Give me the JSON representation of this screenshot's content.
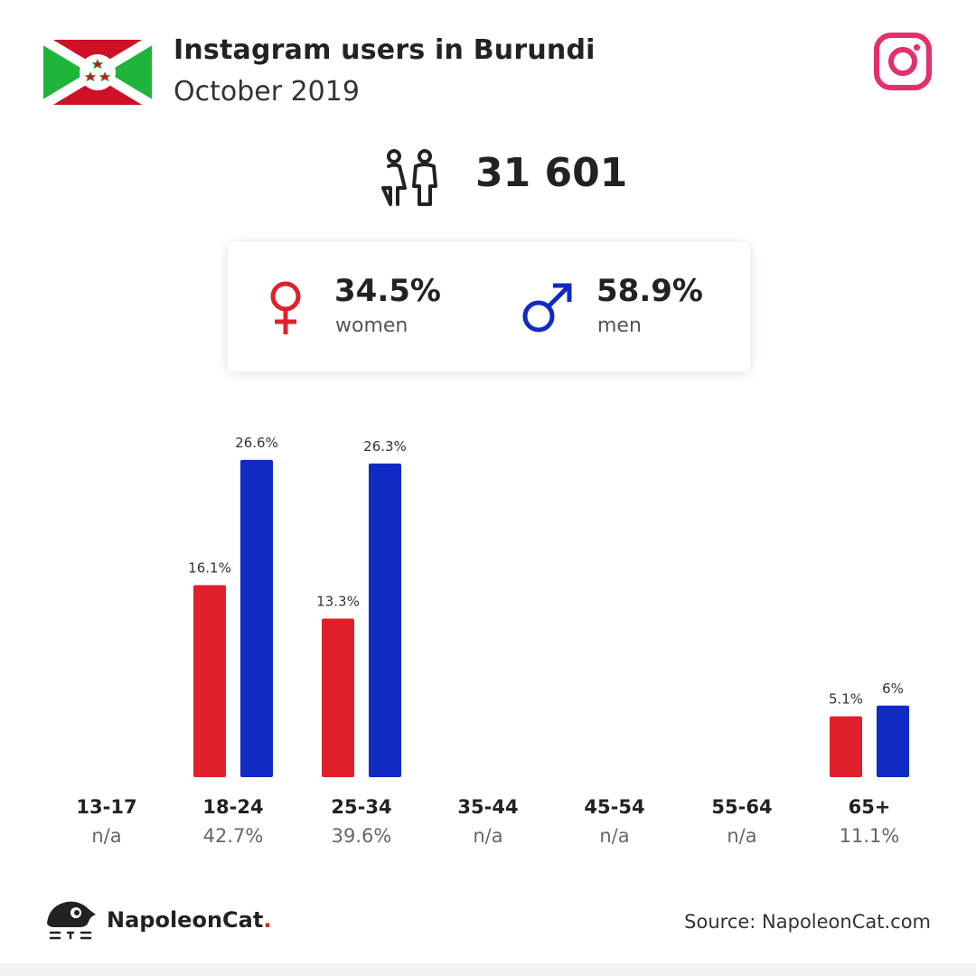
{
  "header": {
    "title": "Instagram users in Burundi",
    "subtitle": "October 2019"
  },
  "total": {
    "value": "31 601",
    "icon": "users-icon"
  },
  "gender": {
    "women_pct": "34.5%",
    "women_label": "women",
    "men_pct": "58.9%",
    "men_label": "men"
  },
  "colors": {
    "women": "#e0202a",
    "men": "#0f2bc4",
    "flag_red": "#ce1126",
    "flag_green": "#1eb53a",
    "instagram": "#e1306c"
  },
  "chart_data": {
    "type": "bar",
    "categories": [
      "13-17",
      "18-24",
      "25-34",
      "35-44",
      "45-54",
      "55-64",
      "65+"
    ],
    "category_totals": [
      "n/a",
      "42.7%",
      "39.6%",
      "n/a",
      "n/a",
      "n/a",
      "11.1%"
    ],
    "series": [
      {
        "name": "women",
        "values": [
          null,
          16.1,
          13.3,
          null,
          null,
          null,
          5.1
        ],
        "labels": [
          "",
          "16.1%",
          "13.3%",
          "",
          "",
          "",
          "5.1%"
        ]
      },
      {
        "name": "men",
        "values": [
          null,
          26.6,
          26.3,
          null,
          null,
          null,
          6
        ],
        "labels": [
          "",
          "26.6%",
          "26.3%",
          "",
          "",
          "",
          "6%"
        ]
      }
    ]
  },
  "footer": {
    "brand": "NapoleonCat",
    "brand_dot": ".",
    "source": "Source: NapoleonCat.com"
  }
}
